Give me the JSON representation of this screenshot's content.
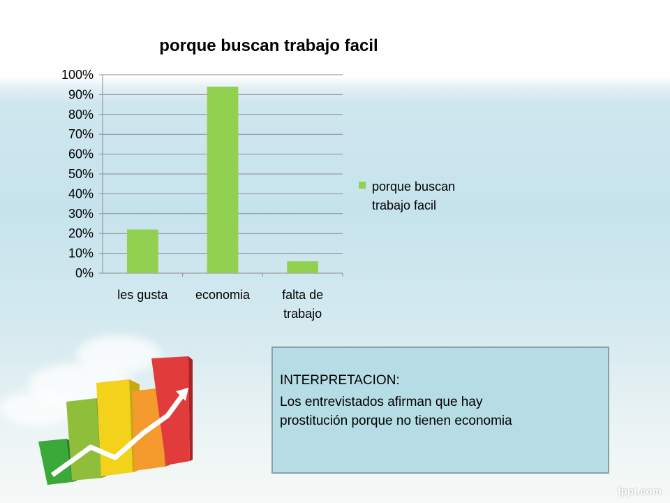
{
  "chart_data": {
    "type": "bar",
    "title": "porque buscan trabajo facil",
    "categories": [
      "les gusta",
      "economia",
      "falta de trabajo"
    ],
    "category_lines": [
      [
        "les gusta"
      ],
      [
        "economia"
      ],
      [
        "falta de",
        "trabajo"
      ]
    ],
    "series": [
      {
        "name": "porque buscan trabajo facil",
        "values": [
          22,
          94,
          6
        ]
      }
    ],
    "yticks": [
      "0%",
      "10%",
      "20%",
      "30%",
      "40%",
      "50%",
      "60%",
      "70%",
      "80%",
      "90%",
      "100%"
    ],
    "ylim": [
      0,
      100
    ],
    "grid": true,
    "legend_position": "right",
    "bar_color": "#92d050"
  },
  "legend": {
    "label_line1": "porque buscan",
    "label_line2": "trabajo facil"
  },
  "interpretation": {
    "title": "INTERPRETACION:",
    "line1": "Los entrevistados afirman que hay",
    "line2": "prostitución porque no tienen economia"
  },
  "branding": "fppt.com"
}
